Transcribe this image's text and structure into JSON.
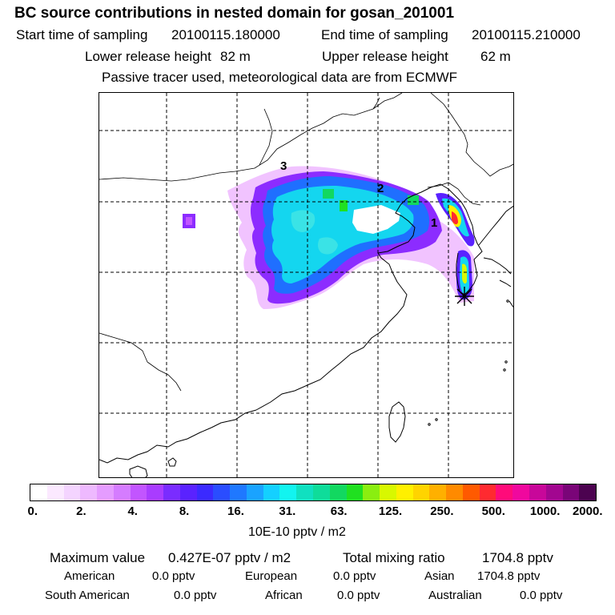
{
  "header": {
    "title": "BC  source contributions in nested domain for gosan_201001",
    "start_label": "Start time of sampling",
    "start_value": "20100115.180000",
    "end_label": "End time of sampling",
    "end_value": "20100115.210000",
    "lower_label": "Lower release height",
    "lower_value": "82 m",
    "upper_label": "Upper release height",
    "upper_value": "62 m",
    "note": "Passive tracer used, meteorological data are from ECMWF"
  },
  "map": {
    "markers": [
      "1",
      "2",
      "3"
    ],
    "receptor_symbol": "star-marker"
  },
  "colorbar": {
    "colors": [
      "#ffffff",
      "#fbe9ff",
      "#f4d4ff",
      "#eeb9ff",
      "#e59cff",
      "#d57cff",
      "#c255ff",
      "#a93cff",
      "#7a2cff",
      "#5a22ff",
      "#3b2aff",
      "#2a4dff",
      "#1f78ff",
      "#1aa3ff",
      "#14d0ff",
      "#12f4f0",
      "#10e0c0",
      "#0fdc9a",
      "#12d860",
      "#20e020",
      "#8aee10",
      "#d8f800",
      "#fff000",
      "#ffd400",
      "#ffb000",
      "#ff8a00",
      "#ff5a00",
      "#ff2a30",
      "#ff0b7a",
      "#f0089e",
      "#c8079a",
      "#a20690",
      "#7a0578",
      "#4c0350"
    ],
    "tick_labels": [
      "0.",
      "2.",
      "4.",
      "8.",
      "16.",
      "31.",
      "63.",
      "125.",
      "250.",
      "500.",
      "1000.",
      "2000."
    ],
    "units": "10E-10 pptv / m2"
  },
  "stats": {
    "max_label": "Maximum value",
    "max_value": "0.427E-07 pptv / m2",
    "total_label": "Total mixing ratio",
    "total_value": "1704.8 pptv",
    "regions": [
      {
        "name": "American",
        "value": "0.0 pptv"
      },
      {
        "name": "European",
        "value": "0.0 pptv"
      },
      {
        "name": "Asian",
        "value": "1704.8 pptv"
      },
      {
        "name": "South American",
        "value": "0.0 pptv"
      },
      {
        "name": "African",
        "value": "0.0 pptv"
      },
      {
        "name": "Australian",
        "value": "0.0 pptv"
      }
    ]
  }
}
